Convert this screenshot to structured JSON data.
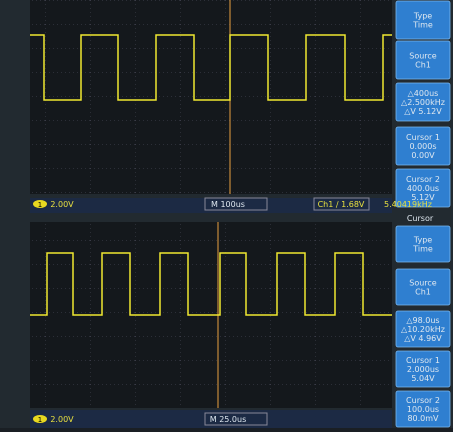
{
  "screens": [
    {
      "menu": [
        {
          "lines": [
            "Type",
            "Time"
          ]
        },
        {
          "lines": [
            "Source",
            "Ch1"
          ]
        },
        {
          "lines": [
            "△400us",
            "△2.500kHz",
            "△V 5.12V"
          ]
        },
        {
          "lines": [
            "Cursor 1",
            "0.000s",
            "0.00V"
          ]
        },
        {
          "lines": [
            "Cursor 2",
            "400.0us",
            "5.12V"
          ]
        }
      ],
      "status": {
        "channel": "1",
        "scale": "2.00V",
        "timebase": "M 100us",
        "trigger": "Ch1 ∕ 1.68V",
        "frequency": "5.40419kHz"
      }
    },
    {
      "header": "Cursor",
      "menu": [
        {
          "lines": [
            "Type",
            "Time"
          ]
        },
        {
          "lines": [
            "Source",
            "Ch1"
          ]
        },
        {
          "lines": [
            "△98.0us",
            "△10.20kHz",
            "△V 4.96V"
          ]
        },
        {
          "lines": [
            "Cursor 1",
            "2.000us",
            "5.04V"
          ]
        },
        {
          "lines": [
            "Cursor 2",
            "100.0us",
            "80.0mV"
          ]
        }
      ],
      "status": {
        "channel": "1",
        "scale": "2.00V",
        "timebase": "M 25.0us"
      }
    }
  ]
}
